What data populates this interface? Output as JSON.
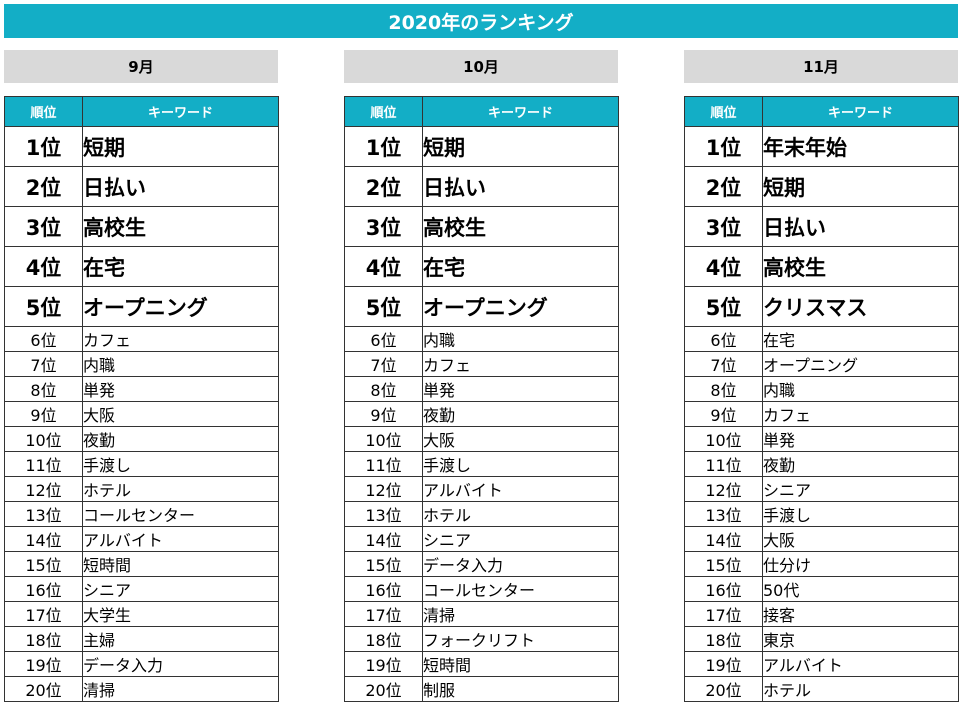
{
  "title": "2020年のランキング",
  "headers": {
    "rank": "順位",
    "keyword": "キーワード"
  },
  "months": [
    {
      "label": "9月",
      "rows": [
        {
          "rank": "1位",
          "keyword": "短期"
        },
        {
          "rank": "2位",
          "keyword": "日払い"
        },
        {
          "rank": "3位",
          "keyword": "高校生"
        },
        {
          "rank": "4位",
          "keyword": "在宅"
        },
        {
          "rank": "5位",
          "keyword": "オープニング"
        },
        {
          "rank": "6位",
          "keyword": "カフェ"
        },
        {
          "rank": "7位",
          "keyword": "内職"
        },
        {
          "rank": "8位",
          "keyword": "単発"
        },
        {
          "rank": "9位",
          "keyword": "大阪"
        },
        {
          "rank": "10位",
          "keyword": "夜勤"
        },
        {
          "rank": "11位",
          "keyword": "手渡し"
        },
        {
          "rank": "12位",
          "keyword": "ホテル"
        },
        {
          "rank": "13位",
          "keyword": "コールセンター"
        },
        {
          "rank": "14位",
          "keyword": "アルバイト"
        },
        {
          "rank": "15位",
          "keyword": "短時間"
        },
        {
          "rank": "16位",
          "keyword": "シニア"
        },
        {
          "rank": "17位",
          "keyword": "大学生"
        },
        {
          "rank": "18位",
          "keyword": "主婦"
        },
        {
          "rank": "19位",
          "keyword": "データ入力"
        },
        {
          "rank": "20位",
          "keyword": "清掃"
        }
      ]
    },
    {
      "label": "10月",
      "rows": [
        {
          "rank": "1位",
          "keyword": "短期"
        },
        {
          "rank": "2位",
          "keyword": "日払い"
        },
        {
          "rank": "3位",
          "keyword": "高校生"
        },
        {
          "rank": "4位",
          "keyword": "在宅"
        },
        {
          "rank": "5位",
          "keyword": "オープニング"
        },
        {
          "rank": "6位",
          "keyword": "内職"
        },
        {
          "rank": "7位",
          "keyword": "カフェ"
        },
        {
          "rank": "8位",
          "keyword": "単発"
        },
        {
          "rank": "9位",
          "keyword": "夜勤"
        },
        {
          "rank": "10位",
          "keyword": "大阪"
        },
        {
          "rank": "11位",
          "keyword": "手渡し"
        },
        {
          "rank": "12位",
          "keyword": "アルバイト"
        },
        {
          "rank": "13位",
          "keyword": "ホテル"
        },
        {
          "rank": "14位",
          "keyword": "シニア"
        },
        {
          "rank": "15位",
          "keyword": "データ入力"
        },
        {
          "rank": "16位",
          "keyword": "コールセンター"
        },
        {
          "rank": "17位",
          "keyword": "清掃"
        },
        {
          "rank": "18位",
          "keyword": "フォークリフト"
        },
        {
          "rank": "19位",
          "keyword": "短時間"
        },
        {
          "rank": "20位",
          "keyword": "制服"
        }
      ]
    },
    {
      "label": "11月",
      "rows": [
        {
          "rank": "1位",
          "keyword": "年末年始"
        },
        {
          "rank": "2位",
          "keyword": "短期"
        },
        {
          "rank": "3位",
          "keyword": "日払い"
        },
        {
          "rank": "4位",
          "keyword": "高校生"
        },
        {
          "rank": "5位",
          "keyword": "クリスマス"
        },
        {
          "rank": "6位",
          "keyword": "在宅"
        },
        {
          "rank": "7位",
          "keyword": "オープニング"
        },
        {
          "rank": "8位",
          "keyword": "内職"
        },
        {
          "rank": "9位",
          "keyword": "カフェ"
        },
        {
          "rank": "10位",
          "keyword": "単発"
        },
        {
          "rank": "11位",
          "keyword": "夜勤"
        },
        {
          "rank": "12位",
          "keyword": "シニア"
        },
        {
          "rank": "13位",
          "keyword": "手渡し"
        },
        {
          "rank": "14位",
          "keyword": "大阪"
        },
        {
          "rank": "15位",
          "keyword": "仕分け"
        },
        {
          "rank": "16位",
          "keyword": "50代"
        },
        {
          "rank": "17位",
          "keyword": "接客"
        },
        {
          "rank": "18位",
          "keyword": "東京"
        },
        {
          "rank": "19位",
          "keyword": "アルバイト"
        },
        {
          "rank": "20位",
          "keyword": "ホテル"
        }
      ]
    }
  ],
  "colors": {
    "accent": "#13aec6",
    "month_bg": "#d9d9d9",
    "border": "#333333"
  }
}
